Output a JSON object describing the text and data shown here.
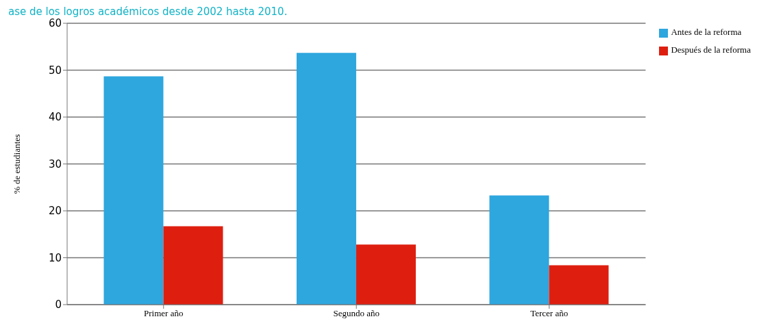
{
  "chart_data": {
    "type": "bar",
    "title": "ase de los logros académicos desde 2002 hasta 2010.",
    "ylabel": "% de estudiantes",
    "categories": [
      "Primer año",
      "Segundo año",
      "Tercer año"
    ],
    "series": [
      {
        "name": "Antes de la reforma",
        "color": "#2ea6de",
        "values": [
          48.7,
          53.7,
          23.3
        ]
      },
      {
        "name": "Después de la reforma",
        "color": "#de1f10",
        "values": [
          16.7,
          12.8,
          8.4
        ]
      }
    ],
    "ylim": [
      0,
      60
    ],
    "yticks": [
      0,
      10,
      20,
      30,
      40,
      50,
      60
    ],
    "grid": "y",
    "legend": "top right"
  }
}
